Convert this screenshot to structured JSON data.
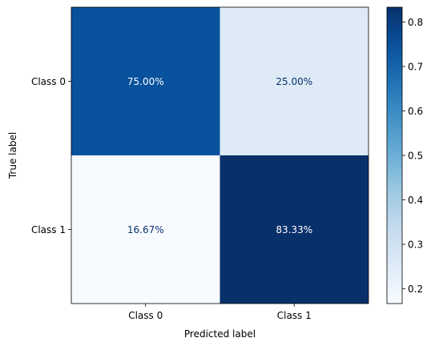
{
  "chart_data": {
    "type": "heatmap",
    "title": "",
    "xlabel": "Predicted label",
    "ylabel": "True label",
    "x_categories": [
      "Class 0",
      "Class 1"
    ],
    "y_categories": [
      "Class 0",
      "Class 1"
    ],
    "values": [
      [
        0.75,
        0.25
      ],
      [
        0.1667,
        0.8333
      ]
    ],
    "cell_labels": [
      [
        "75.00%",
        "25.00%"
      ],
      [
        "16.67%",
        "83.33%"
      ]
    ],
    "colormap": "Blues",
    "colorbar": {
      "range": [
        0.1667,
        0.8333
      ],
      "ticks": [
        0.2,
        0.3,
        0.4,
        0.5,
        0.6,
        0.7,
        0.8
      ],
      "tick_labels": [
        "0.2",
        "0.3",
        "0.4",
        "0.5",
        "0.6",
        "0.7",
        "0.8"
      ]
    },
    "colors": {
      "dark_text": "#08306b",
      "light_text": "#ffffff"
    }
  }
}
